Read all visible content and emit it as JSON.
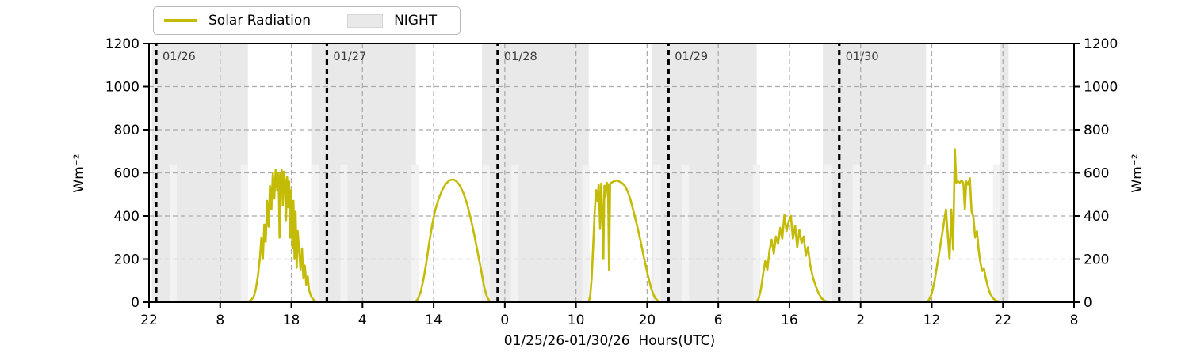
{
  "legend": {
    "solar_label": "Solar Radiation",
    "night_label": "NIGHT"
  },
  "axes": {
    "y_left_label": "Wm⁻²",
    "y_right_label": "Wm⁻²",
    "x_label": "01/25/26-01/30/26  Hours(UTC)"
  },
  "colors": {
    "curve": "#c3bb06",
    "night_band": "#e9e9e9",
    "twilight_strip": "#f2f2f2",
    "grid": "#ababab",
    "day_line": "#000000",
    "day_label": "#3a3a3a",
    "axis": "#000000",
    "legend_border": "#b9b9b9",
    "legend_patch_fill": "#e9e9e9",
    "legend_patch_border": "#d5d5d5"
  },
  "chart_data": {
    "type": "line",
    "title": "",
    "xlabel": "01/25/26-01/30/26  Hours(UTC)",
    "ylabel": "Wm⁻²",
    "ylim": [
      0,
      1200
    ],
    "x_range_hours": [
      0,
      130
    ],
    "grid": true,
    "legend_position": "top-left",
    "y_ticks": [
      0,
      200,
      400,
      600,
      800,
      1000,
      1200
    ],
    "x_ticks": [
      {
        "hour": 0,
        "label": "22"
      },
      {
        "hour": 10,
        "label": "8"
      },
      {
        "hour": 20,
        "label": "18"
      },
      {
        "hour": 30,
        "label": "4"
      },
      {
        "hour": 40,
        "label": "14"
      },
      {
        "hour": 50,
        "label": "0"
      },
      {
        "hour": 60,
        "label": "10"
      },
      {
        "hour": 70,
        "label": "20"
      },
      {
        "hour": 80,
        "label": "6"
      },
      {
        "hour": 90,
        "label": "16"
      },
      {
        "hour": 100,
        "label": "2"
      },
      {
        "hour": 110,
        "label": "12"
      },
      {
        "hour": 120,
        "label": "22"
      },
      {
        "hour": 130,
        "label": "8"
      }
    ],
    "day_boundaries": [
      {
        "hour": 1,
        "label": "01/26"
      },
      {
        "hour": 25,
        "label": "01/27"
      },
      {
        "hour": 49,
        "label": "01/28"
      },
      {
        "hour": 73,
        "label": "01/29"
      },
      {
        "hour": 97,
        "label": "01/30"
      }
    ],
    "night_bands": [
      {
        "start": 0.4,
        "end": 13.9
      },
      {
        "start": 22.8,
        "end": 37.5
      },
      {
        "start": 46.8,
        "end": 61.8
      },
      {
        "start": 70.6,
        "end": 85.4
      },
      {
        "start": 94.7,
        "end": 109.2
      },
      {
        "start": 119.6,
        "end": 120.8
      }
    ],
    "twilight_strips": {
      "start_hours": [
        2.9,
        12.9,
        22.9,
        26.9,
        36.9,
        46.9,
        50.9,
        60.9,
        70.9,
        74.9,
        84.9,
        94.9,
        98.9,
        108.9,
        118.6
      ],
      "width_hours": 1.0,
      "top_value": 640
    },
    "series": [
      {
        "name": "Solar Radiation",
        "units": "Wm⁻²",
        "points": [
          [
            0,
            2
          ],
          [
            13.9,
            2
          ],
          [
            14.3,
            8
          ],
          [
            14.7,
            25
          ],
          [
            15.0,
            60
          ],
          [
            15.3,
            120
          ],
          [
            15.6,
            210
          ],
          [
            15.8,
            300
          ],
          [
            16.0,
            200
          ],
          [
            16.2,
            360
          ],
          [
            16.4,
            280
          ],
          [
            16.6,
            470
          ],
          [
            16.8,
            350
          ],
          [
            17.0,
            540
          ],
          [
            17.2,
            430
          ],
          [
            17.4,
            600
          ],
          [
            17.6,
            480
          ],
          [
            17.8,
            615
          ],
          [
            18.0,
            520
          ],
          [
            18.2,
            600
          ],
          [
            18.35,
            300
          ],
          [
            18.5,
            590
          ],
          [
            18.65,
            615
          ],
          [
            18.8,
            450
          ],
          [
            18.95,
            605
          ],
          [
            19.1,
            560
          ],
          [
            19.25,
            380
          ],
          [
            19.4,
            580
          ],
          [
            19.55,
            440
          ],
          [
            19.7,
            560
          ],
          [
            19.85,
            300
          ],
          [
            20.0,
            520
          ],
          [
            20.15,
            250
          ],
          [
            20.3,
            470
          ],
          [
            20.45,
            200
          ],
          [
            20.6,
            420
          ],
          [
            20.75,
            160
          ],
          [
            20.9,
            330
          ],
          [
            21.1,
            240
          ],
          [
            21.3,
            150
          ],
          [
            21.5,
            250
          ],
          [
            21.7,
            110
          ],
          [
            21.9,
            170
          ],
          [
            22.1,
            80
          ],
          [
            22.3,
            120
          ],
          [
            22.5,
            55
          ],
          [
            22.8,
            25
          ],
          [
            23.2,
            8
          ],
          [
            23.6,
            2
          ],
          [
            37.4,
            2
          ],
          [
            37.8,
            15
          ],
          [
            38.2,
            50
          ],
          [
            38.6,
            110
          ],
          [
            39.0,
            190
          ],
          [
            39.4,
            280
          ],
          [
            39.8,
            360
          ],
          [
            40.2,
            425
          ],
          [
            40.7,
            480
          ],
          [
            41.2,
            520
          ],
          [
            41.7,
            548
          ],
          [
            42.2,
            565
          ],
          [
            42.7,
            570
          ],
          [
            43.2,
            562
          ],
          [
            43.7,
            540
          ],
          [
            44.2,
            505
          ],
          [
            44.7,
            455
          ],
          [
            45.2,
            390
          ],
          [
            45.7,
            315
          ],
          [
            46.2,
            230
          ],
          [
            46.7,
            145
          ],
          [
            47.1,
            70
          ],
          [
            47.5,
            25
          ],
          [
            47.9,
            2
          ],
          [
            61.8,
            2
          ],
          [
            62.0,
            30
          ],
          [
            62.2,
            110
          ],
          [
            62.4,
            250
          ],
          [
            62.6,
            400
          ],
          [
            62.8,
            520
          ],
          [
            63.0,
            470
          ],
          [
            63.2,
            545
          ],
          [
            63.4,
            340
          ],
          [
            63.55,
            550
          ],
          [
            63.7,
            420
          ],
          [
            63.85,
            200
          ],
          [
            64.0,
            540
          ],
          [
            64.15,
            490
          ],
          [
            64.3,
            555
          ],
          [
            64.5,
            545
          ],
          [
            64.65,
            150
          ],
          [
            64.8,
            550
          ],
          [
            65.0,
            555
          ],
          [
            65.3,
            560
          ],
          [
            65.7,
            565
          ],
          [
            66.1,
            560
          ],
          [
            66.5,
            552
          ],
          [
            66.9,
            538
          ],
          [
            67.3,
            512
          ],
          [
            67.7,
            472
          ],
          [
            68.1,
            420
          ],
          [
            68.6,
            355
          ],
          [
            69.1,
            280
          ],
          [
            69.6,
            200
          ],
          [
            70.1,
            125
          ],
          [
            70.6,
            60
          ],
          [
            71.1,
            20
          ],
          [
            71.6,
            4
          ],
          [
            71.9,
            2
          ],
          [
            85.4,
            2
          ],
          [
            85.7,
            20
          ],
          [
            86.0,
            60
          ],
          [
            86.3,
            130
          ],
          [
            86.6,
            190
          ],
          [
            86.9,
            150
          ],
          [
            87.2,
            240
          ],
          [
            87.5,
            290
          ],
          [
            87.8,
            225
          ],
          [
            88.1,
            305
          ],
          [
            88.4,
            270
          ],
          [
            88.7,
            345
          ],
          [
            89.0,
            295
          ],
          [
            89.3,
            405
          ],
          [
            89.6,
            330
          ],
          [
            89.9,
            375
          ],
          [
            90.2,
            400
          ],
          [
            90.5,
            295
          ],
          [
            90.8,
            355
          ],
          [
            91.1,
            255
          ],
          [
            91.4,
            335
          ],
          [
            91.7,
            275
          ],
          [
            92.0,
            305
          ],
          [
            92.3,
            215
          ],
          [
            92.6,
            255
          ],
          [
            92.9,
            175
          ],
          [
            93.3,
            115
          ],
          [
            93.7,
            75
          ],
          [
            94.1,
            42
          ],
          [
            94.5,
            18
          ],
          [
            95.0,
            6
          ],
          [
            95.5,
            2
          ],
          [
            109.2,
            2
          ],
          [
            109.6,
            10
          ],
          [
            110.0,
            40
          ],
          [
            110.4,
            100
          ],
          [
            110.8,
            180
          ],
          [
            111.2,
            260
          ],
          [
            111.6,
            345
          ],
          [
            112.0,
            430
          ],
          [
            112.25,
            310
          ],
          [
            112.5,
            200
          ],
          [
            112.75,
            430
          ],
          [
            113.0,
            245
          ],
          [
            113.25,
            710
          ],
          [
            113.45,
            555
          ],
          [
            113.7,
            560
          ],
          [
            113.95,
            555
          ],
          [
            114.2,
            565
          ],
          [
            114.45,
            550
          ],
          [
            114.65,
            430
          ],
          [
            114.85,
            560
          ],
          [
            115.1,
            545
          ],
          [
            115.35,
            575
          ],
          [
            115.6,
            420
          ],
          [
            115.85,
            395
          ],
          [
            116.1,
            300
          ],
          [
            116.35,
            330
          ],
          [
            116.6,
            240
          ],
          [
            116.85,
            180
          ],
          [
            117.1,
            145
          ],
          [
            117.35,
            155
          ],
          [
            117.6,
            110
          ],
          [
            117.9,
            70
          ],
          [
            118.2,
            40
          ],
          [
            118.6,
            18
          ],
          [
            119.1,
            6
          ],
          [
            119.7,
            2
          ]
        ]
      }
    ]
  }
}
